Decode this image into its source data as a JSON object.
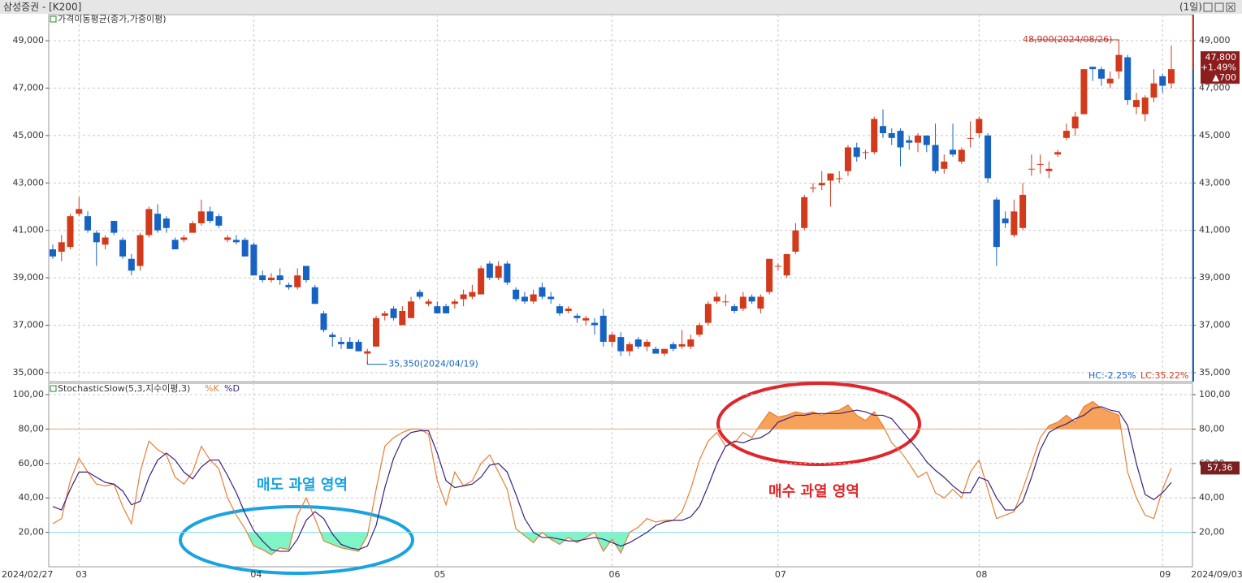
{
  "window": {
    "title": "삼성증권 - [K200]",
    "period": "(1일)"
  },
  "chart_data": [
    {
      "type": "candlestick",
      "legend": "가격이동평균(종가,가중이평)",
      "categories": [
        "2024/02/27",
        null,
        null,
        "03",
        null,
        null,
        null,
        null,
        null,
        null,
        null,
        null,
        null,
        null,
        null,
        null,
        null,
        null,
        null,
        null,
        null,
        null,
        null,
        "04",
        null,
        null,
        null,
        null,
        null,
        null,
        null,
        null,
        null,
        null,
        null,
        null,
        null,
        null,
        null,
        null,
        null,
        null,
        null,
        null,
        "05",
        null,
        null,
        null,
        null,
        null,
        null,
        null,
        null,
        null,
        null,
        null,
        null,
        null,
        null,
        null,
        null,
        null,
        null,
        null,
        "06",
        null,
        null,
        null,
        null,
        null,
        null,
        null,
        null,
        null,
        null,
        null,
        null,
        null,
        null,
        null,
        null,
        null,
        null,
        "07",
        null,
        null,
        null,
        null,
        null,
        null,
        null,
        null,
        null,
        null,
        null,
        null,
        null,
        null,
        null,
        null,
        null,
        null,
        null,
        null,
        null,
        null,
        "08",
        null,
        null,
        null,
        null,
        null,
        null,
        null,
        null,
        null,
        null,
        null,
        null,
        null,
        null,
        null,
        null,
        null,
        null,
        null,
        null,
        "09",
        "2024/09/03"
      ],
      "ohlc": [
        [
          40200,
          40400,
          39800,
          39900
        ],
        [
          40100,
          40800,
          39700,
          40500
        ],
        [
          40300,
          41700,
          40200,
          41600
        ],
        [
          41700,
          42400,
          41600,
          41900
        ],
        [
          41600,
          41800,
          40900,
          41000
        ],
        [
          40900,
          41000,
          39500,
          40500
        ],
        [
          40400,
          40800,
          40200,
          40700
        ],
        [
          41400,
          41400,
          40800,
          40900
        ],
        [
          40600,
          40700,
          39800,
          39900
        ],
        [
          39800,
          40000,
          39100,
          39300
        ],
        [
          39500,
          40900,
          39300,
          40800
        ],
        [
          40800,
          42000,
          40700,
          41900
        ],
        [
          41700,
          42100,
          40900,
          41000
        ],
        [
          41500,
          41600,
          40900,
          41100
        ],
        [
          40600,
          40700,
          40200,
          40200
        ],
        [
          40600,
          40800,
          40500,
          40700
        ],
        [
          40900,
          41400,
          40900,
          41300
        ],
        [
          41300,
          42300,
          41200,
          41800
        ],
        [
          41800,
          42000,
          41300,
          41400
        ],
        [
          41600,
          41700,
          41100,
          41200
        ],
        [
          40600,
          40800,
          40500,
          40700
        ],
        [
          40600,
          40800,
          40400,
          40500
        ],
        [
          40600,
          40700,
          39900,
          39900
        ],
        [
          40400,
          40500,
          39100,
          39100
        ],
        [
          39100,
          39300,
          38800,
          38900
        ],
        [
          38900,
          39200,
          38800,
          39000
        ],
        [
          39100,
          39400,
          38700,
          38900
        ],
        [
          38700,
          38800,
          38500,
          38600
        ],
        [
          38600,
          39400,
          38500,
          39100
        ],
        [
          39500,
          39500,
          38800,
          38900
        ],
        [
          38600,
          38700,
          37900,
          37900
        ],
        [
          37500,
          37600,
          36700,
          36800
        ],
        [
          36600,
          36700,
          36100,
          36500
        ],
        [
          36300,
          36500,
          36000,
          36200
        ],
        [
          36300,
          36500,
          36000,
          36000
        ],
        [
          36300,
          36400,
          35900,
          35900
        ],
        [
          35800,
          36000,
          35350,
          35900
        ],
        [
          36100,
          37400,
          36100,
          37300
        ],
        [
          37400,
          37600,
          37200,
          37500
        ],
        [
          37700,
          37800,
          37200,
          37300
        ],
        [
          37000,
          37800,
          37000,
          37600
        ],
        [
          37300,
          38200,
          37300,
          38000
        ],
        [
          38400,
          38500,
          38100,
          38200
        ],
        [
          37900,
          38100,
          37800,
          38000
        ],
        [
          37800,
          38000,
          37500,
          37500
        ],
        [
          37800,
          37900,
          37500,
          37500
        ],
        [
          37900,
          38100,
          37700,
          38000
        ],
        [
          38100,
          38500,
          37800,
          38300
        ],
        [
          38200,
          38700,
          38100,
          38400
        ],
        [
          38300,
          39500,
          38300,
          39400
        ],
        [
          39600,
          39700,
          38900,
          39000
        ],
        [
          39000,
          39700,
          38900,
          39500
        ],
        [
          39600,
          39700,
          38700,
          38800
        ],
        [
          38500,
          38600,
          38000,
          38100
        ],
        [
          38200,
          38400,
          37900,
          38000
        ],
        [
          38000,
          38500,
          37900,
          38300
        ],
        [
          38600,
          38800,
          38100,
          38200
        ],
        [
          38200,
          38400,
          37900,
          38100
        ],
        [
          37800,
          37900,
          37400,
          37500
        ],
        [
          37600,
          37800,
          37500,
          37700
        ],
        [
          37400,
          37500,
          37100,
          37300
        ],
        [
          37200,
          37400,
          37000,
          37300
        ],
        [
          37100,
          37300,
          36600,
          37000
        ],
        [
          37400,
          37700,
          36100,
          36300
        ],
        [
          36300,
          36700,
          36100,
          36600
        ],
        [
          36500,
          36700,
          35700,
          35900
        ],
        [
          35900,
          36300,
          35700,
          36200
        ],
        [
          36400,
          36500,
          36000,
          36100
        ],
        [
          36100,
          36400,
          35900,
          36300
        ],
        [
          36000,
          36100,
          35800,
          35800
        ],
        [
          35800,
          36000,
          35700,
          36000
        ],
        [
          36200,
          36300,
          35900,
          36000
        ],
        [
          36100,
          36800,
          36000,
          36200
        ],
        [
          36100,
          36600,
          36000,
          36400
        ],
        [
          36600,
          37100,
          36500,
          37000
        ],
        [
          37100,
          38000,
          37000,
          37900
        ],
        [
          38000,
          38400,
          37900,
          38200
        ],
        [
          38000,
          38300,
          37800,
          38000
        ],
        [
          37800,
          37900,
          37500,
          37600
        ],
        [
          37700,
          38400,
          37600,
          38200
        ],
        [
          38200,
          38300,
          37900,
          38000
        ],
        [
          37700,
          38300,
          37500,
          38200
        ],
        [
          38400,
          39800,
          38300,
          39800
        ],
        [
          39500,
          39600,
          39300,
          39500
        ],
        [
          39100,
          40000,
          39000,
          40000
        ],
        [
          40100,
          41300,
          40000,
          41000
        ],
        [
          41100,
          42500,
          41000,
          42400
        ],
        [
          42800,
          43000,
          42600,
          42800
        ],
        [
          42900,
          43500,
          42700,
          43000
        ],
        [
          43100,
          43400,
          42000,
          43400
        ],
        [
          43200,
          43500,
          43000,
          43200
        ],
        [
          43500,
          44600,
          43300,
          44500
        ],
        [
          44500,
          44700,
          43900,
          44100
        ],
        [
          44300,
          44400,
          44000,
          44300
        ],
        [
          44300,
          45800,
          44200,
          45700
        ],
        [
          45400,
          46100,
          44900,
          45100
        ],
        [
          45100,
          45300,
          44600,
          44900
        ],
        [
          45200,
          45300,
          43700,
          44500
        ],
        [
          44800,
          45000,
          44400,
          44700
        ],
        [
          44700,
          45100,
          44300,
          45000
        ],
        [
          45000,
          45000,
          44300,
          44600
        ],
        [
          44600,
          45500,
          43400,
          43500
        ],
        [
          43600,
          44200,
          43400,
          43900
        ],
        [
          44400,
          45500,
          44100,
          44200
        ],
        [
          43900,
          44500,
          43800,
          44400
        ],
        [
          44900,
          45600,
          44500,
          44900
        ],
        [
          45100,
          45800,
          44900,
          45700
        ],
        [
          45000,
          45100,
          43000,
          43200
        ],
        [
          42300,
          42400,
          39500,
          40300
        ],
        [
          41500,
          41800,
          41100,
          41300
        ],
        [
          40800,
          42300,
          40700,
          41800
        ],
        [
          41100,
          43000,
          41000,
          42500
        ],
        [
          43600,
          44200,
          43300,
          43600
        ],
        [
          43800,
          44200,
          43400,
          43800
        ],
        [
          43500,
          43900,
          43200,
          43600
        ],
        [
          44200,
          44400,
          44100,
          44300
        ],
        [
          44900,
          45500,
          44800,
          45200
        ],
        [
          45300,
          46000,
          45000,
          45800
        ],
        [
          45900,
          47800,
          45900,
          47800
        ],
        [
          47900,
          47900,
          47300,
          47800
        ],
        [
          47800,
          47900,
          47100,
          47400
        ],
        [
          47200,
          47700,
          47000,
          47400
        ],
        [
          47700,
          48900,
          47400,
          48400
        ],
        [
          48300,
          48400,
          46300,
          46500
        ],
        [
          46200,
          46800,
          45900,
          46500
        ],
        [
          45900,
          46700,
          45600,
          46600
        ],
        [
          46600,
          47800,
          46400,
          47200
        ],
        [
          47500,
          47600,
          46800,
          47100
        ],
        [
          47200,
          48800,
          47000,
          47800
        ]
      ],
      "up_color": "#d23a1c",
      "down_color": "#1763c2",
      "ylim": [
        34620,
        50100
      ],
      "yticks": [
        {
          "value": 35000,
          "label": "35,000"
        },
        {
          "value": 37000,
          "label": "37,000"
        },
        {
          "value": 39000,
          "label": "39,000"
        },
        {
          "value": 41000,
          "label": "41,000"
        },
        {
          "value": 43000,
          "label": "43,000"
        },
        {
          "value": 45000,
          "label": "45,000"
        },
        {
          "value": 47000,
          "label": "47,000"
        },
        {
          "value": 49000,
          "label": "49,000"
        }
      ],
      "grid": true,
      "max_label": "48,900(2024/08/26)",
      "min_label": "35,350(2024/04/19)",
      "last_labels": [
        "47,800",
        "+1.49%",
        "▲700"
      ],
      "hc_label": "HC:-2.25%",
      "lc_label": "LC:35.22%"
    },
    {
      "type": "line",
      "legend": "StochasticSlow(5,3,지수이평,3)",
      "series": [
        {
          "name": "%K",
          "color": "#e57f35",
          "last_value_label": "57,36",
          "values": [
            25,
            28,
            50,
            63,
            55,
            48,
            47,
            48,
            35,
            25,
            55,
            73,
            68,
            65,
            52,
            48,
            55,
            70,
            62,
            57,
            40,
            30,
            22,
            12,
            10,
            7,
            11,
            10,
            30,
            40,
            28,
            15,
            13,
            11,
            10,
            9,
            18,
            45,
            70,
            75,
            78,
            80,
            80,
            77,
            50,
            36,
            55,
            47,
            50,
            60,
            65,
            55,
            45,
            22,
            18,
            14,
            20,
            16,
            13,
            17,
            14,
            17,
            20,
            9,
            16,
            8,
            20,
            23,
            28,
            26,
            27,
            27,
            32,
            45,
            62,
            73,
            78,
            70,
            72,
            78,
            75,
            83,
            90,
            87,
            88,
            90,
            89,
            90,
            88,
            90,
            91,
            94,
            88,
            85,
            90,
            82,
            72,
            67,
            60,
            52,
            55,
            43,
            40,
            45,
            40,
            55,
            62,
            45,
            28,
            30,
            32,
            45,
            60,
            75,
            82,
            84,
            88,
            84,
            93,
            96,
            92,
            90,
            88,
            55,
            40,
            30,
            28,
            45,
            57.36
          ]
        },
        {
          "name": "%D",
          "color": "#3b1f7d",
          "values": [
            35,
            33,
            45,
            55,
            55,
            52,
            49,
            48,
            44,
            36,
            38,
            52,
            62,
            66,
            62,
            55,
            51,
            58,
            62,
            62,
            53,
            43,
            31,
            21,
            15,
            10,
            9,
            9,
            16,
            27,
            32,
            28,
            19,
            13,
            11,
            10,
            12,
            24,
            46,
            63,
            74,
            78,
            79,
            79,
            66,
            50,
            46,
            47,
            48,
            52,
            59,
            60,
            55,
            42,
            28,
            20,
            17,
            17,
            16,
            15,
            15,
            16,
            17,
            16,
            14,
            12,
            14,
            17,
            20,
            24,
            26,
            27,
            27,
            29,
            35,
            47,
            60,
            70,
            73,
            72,
            74,
            75,
            78,
            84,
            86,
            88,
            88,
            89,
            89,
            89,
            89,
            90,
            91,
            90,
            88,
            88,
            86,
            80,
            74,
            68,
            61,
            56,
            52,
            47,
            43,
            43,
            52,
            50,
            40,
            33,
            33,
            38,
            52,
            68,
            78,
            81,
            83,
            86,
            88,
            92,
            93,
            91,
            90,
            82,
            60,
            42,
            39,
            43,
            49
          ]
        }
      ],
      "ylim": [
        0,
        106.6
      ],
      "yticks": [
        {
          "value": 20,
          "label": "20,00"
        },
        {
          "value": 40,
          "label": "40,00"
        },
        {
          "value": 60,
          "label": "60,00"
        },
        {
          "value": 80,
          "label": "80,00"
        },
        {
          "value": 100,
          "label": "100,00"
        }
      ],
      "grid": true,
      "hlines": [
        {
          "value": 80,
          "color": "#f0a868"
        },
        {
          "value": 20,
          "color": "#86e3ea"
        }
      ],
      "fill_above_color": "#f7a25a",
      "fill_below_color": "#7ff5c6"
    }
  ],
  "annotations": [
    {
      "text": "매도 과열 영역",
      "color": "#1aa3e0"
    },
    {
      "text": "매수 과열 영역",
      "color": "#e0262a"
    }
  ]
}
